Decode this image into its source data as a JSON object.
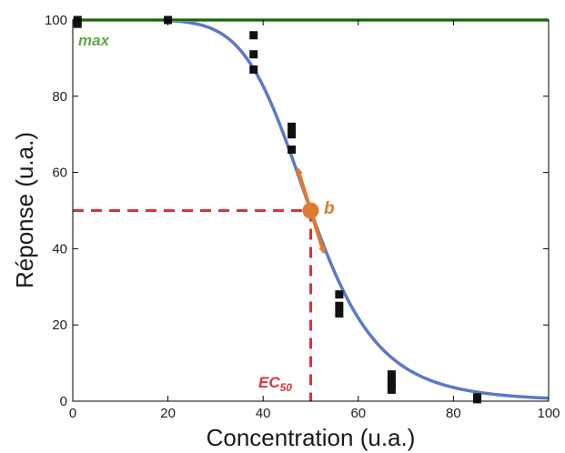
{
  "chart_data": {
    "type": "scatter",
    "xlabel": "Concentration (u.a.)",
    "ylabel": "Réponse (u.a.)",
    "xlim": [
      0,
      100
    ],
    "ylim": [
      0,
      100
    ],
    "xticks": [
      "0",
      "20",
      "40",
      "60",
      "80",
      "100"
    ],
    "yticks": [
      "0",
      "20",
      "40",
      "60",
      "80",
      "100"
    ],
    "grid": false,
    "points": [
      {
        "x": 1,
        "y": 100
      },
      {
        "x": 1,
        "y": 99
      },
      {
        "x": 20,
        "y": 100
      },
      {
        "x": 38,
        "y": 96
      },
      {
        "x": 38,
        "y": 91
      },
      {
        "x": 38,
        "y": 87
      },
      {
        "x": 46,
        "y": 72
      },
      {
        "x": 46,
        "y": 70
      },
      {
        "x": 46,
        "y": 66
      },
      {
        "x": 56,
        "y": 28
      },
      {
        "x": 56,
        "y": 25
      },
      {
        "x": 56,
        "y": 23
      },
      {
        "x": 67,
        "y": 7
      },
      {
        "x": 67,
        "y": 5
      },
      {
        "x": 67,
        "y": 4
      },
      {
        "x": 67,
        "y": 3
      },
      {
        "x": 85,
        "y": 1
      },
      {
        "x": 85,
        "y": 0.5
      }
    ],
    "fit_curve": {
      "model": "sigmoid",
      "top": 100,
      "bottom": 0,
      "ec50": 50,
      "hill": 7
    },
    "max_line": {
      "y": 100,
      "label": "max"
    },
    "ec50": {
      "x": 50,
      "y": 50,
      "label": "EC",
      "subscript": "50"
    },
    "slope": {
      "label": "b"
    },
    "colors": {
      "points": "#111111",
      "curve": "#5b79c7",
      "max_line": "#5aab4a",
      "ec50_lines": "#d9343a",
      "slope": "#e07a2e"
    }
  }
}
